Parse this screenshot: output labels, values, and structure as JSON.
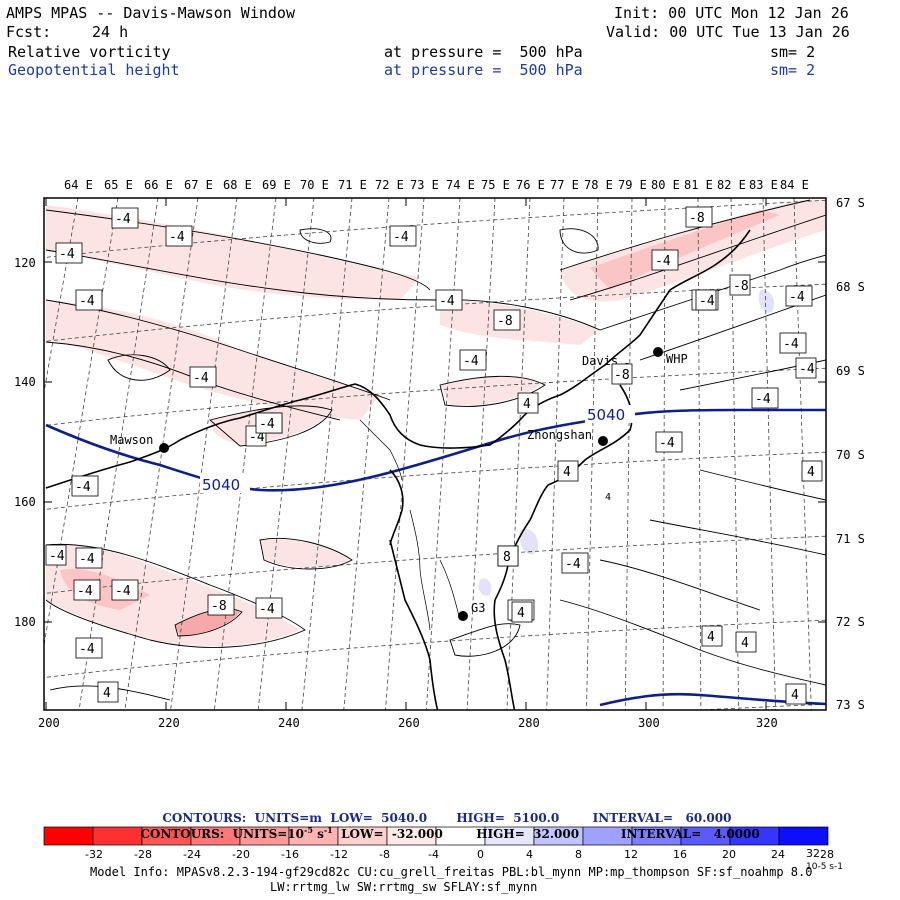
{
  "header": {
    "title": "AMPS MPAS -- Davis-Mawson Window",
    "fcst_label": "Fcst:",
    "fcst_value": "24 h",
    "init": "Init: 00 UTC Mon 12 Jan 26",
    "valid": "Valid: 00 UTC Tue 13 Jan 26",
    "field1": {
      "name": "Relative vorticity",
      "level": "at pressure =  500 hPa",
      "sm": "sm= 2"
    },
    "field2": {
      "name": "Geopotential height",
      "level": "at pressure =  500 hPa",
      "sm": "sm= 2"
    }
  },
  "map": {
    "lon_labels": [
      "64 E",
      "65 E",
      "66 E",
      "67 E",
      "68 E",
      "69 E",
      "70 E",
      "71 E",
      "72 E",
      "73 E",
      "74 E",
      "75 E",
      "76 E",
      "77 E",
      "78 E",
      "79 E",
      "80 E",
      "81 E",
      "82 E",
      "83 E",
      "84 E"
    ],
    "lat_labels": [
      "67 S",
      "68 S",
      "69 S",
      "70 S",
      "71 S",
      "72 S",
      "73 S"
    ],
    "x_ticks": [
      "200",
      "220",
      "240",
      "260",
      "280",
      "300",
      "320"
    ],
    "y_ticks": [
      "120",
      "140",
      "160",
      "180"
    ],
    "stations": [
      {
        "name": "Mawson"
      },
      {
        "name": "Davis"
      },
      {
        "name": "WHP"
      },
      {
        "name": "Zhongshan"
      },
      {
        "name": "G3"
      }
    ],
    "contour_labels": {
      "height": [
        "5040",
        "5040"
      ],
      "vort": [
        "-4",
        "-4",
        "-4",
        "-4",
        "-4",
        "-4",
        "-4",
        "-4",
        "-4",
        "-8",
        "-8",
        "-4",
        "-4",
        "-4",
        "-4",
        "-4",
        "-4",
        "-4",
        "-4",
        "-4",
        "-4",
        "4",
        "4",
        "4",
        "-4",
        "-4",
        "-4",
        "-8",
        "-8",
        "-8",
        "-4",
        "-4",
        "4",
        "-8",
        "-4",
        "4",
        "-4",
        "4",
        "-4",
        "4",
        "4",
        "4",
        "8",
        "-4"
      ]
    }
  },
  "contours_info": {
    "line1": {
      "label": "CONTOURS:",
      "units": "UNITS=m",
      "low": "LOW=  5040.0",
      "high": "HIGH=  5100.0",
      "interval": "INTERVAL=   60.000"
    },
    "line2": {
      "label": "CONTOURS:",
      "units": "UNITS=10",
      "units_sup": "-5",
      "units_tail": "s",
      "units_tail_sup": "-1",
      "low": "LOW=  -32.000",
      "high": "HIGH=  32.000",
      "interval": "INTERVAL=   4.0000"
    }
  },
  "colorbar": {
    "tick_labels": [
      "-32",
      "-28",
      "-24",
      "-20",
      "-16",
      "-12",
      "-8",
      "-4",
      "0",
      "4",
      "8",
      "12",
      "16",
      "20",
      "24",
      "28",
      "32"
    ],
    "unit": "10",
    "unit_sup": "-5",
    "unit_tail": "s",
    "unit_tail_sup": "-1",
    "colors": [
      "#ff0000",
      "#ff3030",
      "#ff5555",
      "#ff7777",
      "#ff9999",
      "#ffb3b3",
      "#ffd0d0",
      "#ffeaea",
      "#ffffff",
      "#ffffff",
      "#e6e6ff",
      "#c3c3ff",
      "#a0a0ff",
      "#7d7dff",
      "#5a5aff",
      "#3535ff",
      "#0e0eff"
    ]
  },
  "model_info": {
    "line1": "Model Info: MPASv8.2.3-194-gf29cd82c CU:cu_grell_freitas PBL:bl_mynn MP:mp_thompson SF:sf_noahmp 8.0",
    "line2": "LW:rrtmg_lw SW:rrtmg_sw SFLAY:sf_mynn"
  },
  "colors": {
    "height_contour": "#0e1f8a",
    "title_blue": "#1a3aa8",
    "coast": "#000000"
  }
}
